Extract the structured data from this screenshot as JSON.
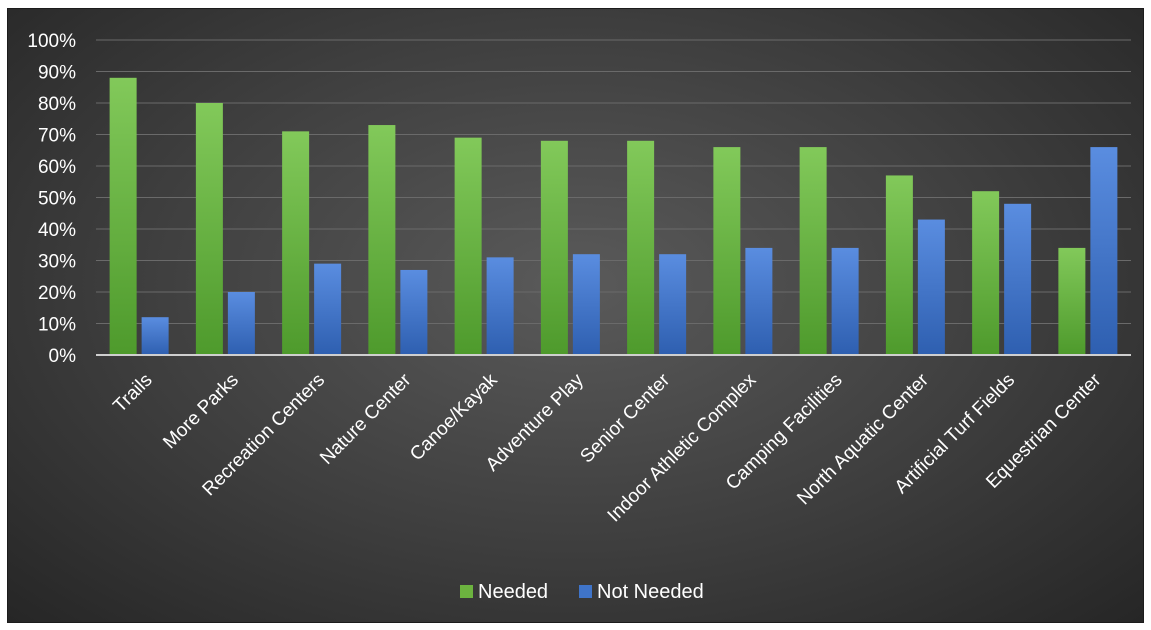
{
  "chart_data": {
    "type": "bar",
    "title": "",
    "xlabel": "",
    "ylabel": "",
    "ylim": [
      0,
      100
    ],
    "y_ticks": [
      "0%",
      "10%",
      "20%",
      "30%",
      "40%",
      "50%",
      "60%",
      "70%",
      "80%",
      "90%",
      "100%"
    ],
    "y_tick_values": [
      0,
      10,
      20,
      30,
      40,
      50,
      60,
      70,
      80,
      90,
      100
    ],
    "grid": true,
    "legend_position": "bottom",
    "categories": [
      "Trails",
      "More Parks",
      "Recreation Centers",
      "Nature Center",
      "Canoe/Kayak",
      "Adventure Play",
      "Senior Center",
      "Indoor Athletic Complex",
      "Camping Facilities",
      "North Aquatic Center",
      "Artificial Turf Fields",
      "Equestrian Center"
    ],
    "series": [
      {
        "name": "Needed",
        "color": "#6cb33f",
        "values": [
          88,
          80,
          71,
          73,
          69,
          68,
          68,
          66,
          66,
          57,
          52,
          34
        ]
      },
      {
        "name": "Not Needed",
        "color": "#3f74c9",
        "values": [
          12,
          20,
          29,
          27,
          31,
          32,
          32,
          34,
          34,
          43,
          48,
          66
        ]
      }
    ]
  }
}
